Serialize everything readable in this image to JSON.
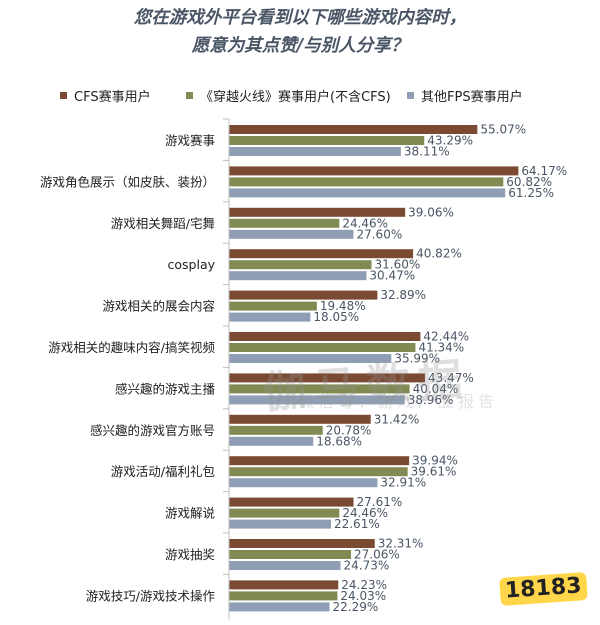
{
  "title_line1": "您在游戏外平台看到以下哪些游戏内容时，",
  "title_line2": "愿意为其点赞/与别人分享？",
  "colors": {
    "CFS赛事用户": "#7a4a33",
    "《穿越火线》赛事用户(不含CFS)": "#808a52",
    "其他FPS赛事用户": "#8f9eb4",
    "label_text": "#222222",
    "value_text": "#4a5565",
    "axis": "#bfbfbf"
  },
  "watermark": {
    "main": "伽马数据",
    "sub": "微信号：游戏产业报告"
  },
  "logo_text": "18183",
  "chart_data": {
    "type": "bar",
    "orientation": "horizontal",
    "title": "您在游戏外平台看到以下哪些游戏内容时，愿意为其点赞/与别人分享？",
    "xlabel": "",
    "ylabel": "",
    "grid": false,
    "legend_position": "top",
    "categories": [
      "游戏赛事",
      "游戏角色展示（如皮肤、装扮）",
      "游戏相关舞蹈/宅舞",
      "cosplay",
      "游戏相关的展会内容",
      "游戏相关的趣味内容/搞笑视频",
      "感兴趣的游戏主播",
      "感兴趣的游戏官方账号",
      "游戏活动/福利礼包",
      "游戏解说",
      "游戏抽奖",
      "游戏技巧/游戏技术操作"
    ],
    "series": [
      {
        "name": "CFS赛事用户",
        "values": [
          55.07,
          64.17,
          39.06,
          40.82,
          32.89,
          42.44,
          43.47,
          31.42,
          39.94,
          27.61,
          32.31,
          24.23
        ]
      },
      {
        "name": "《穿越火线》赛事用户(不含CFS)",
        "values": [
          43.29,
          60.82,
          24.46,
          31.6,
          19.48,
          41.34,
          40.04,
          20.78,
          39.61,
          24.46,
          27.06,
          24.03
        ]
      },
      {
        "name": "其他FPS赛事用户",
        "values": [
          38.11,
          61.25,
          27.6,
          30.47,
          18.05,
          35.99,
          38.96,
          18.68,
          32.91,
          22.61,
          24.73,
          22.29
        ]
      }
    ],
    "value_labels": [
      [
        "55.07%",
        "64.17%",
        "39.06%",
        "40.82%",
        "32.89%",
        "42.44%",
        "43.47%",
        "31.42%",
        "39.94%",
        "27.61%",
        "32.31%",
        "24.23%"
      ],
      [
        "43.29%",
        "60.82%",
        "24.46%",
        "31.60%",
        "19.48%",
        "41.34%",
        "40.04%",
        "20.78%",
        "39.61%",
        "24.46%",
        "27.06%",
        "24.03%"
      ],
      [
        "38.11%",
        "61.25%",
        "27.60%",
        "30.47%",
        "18.05%",
        "35.99%",
        "38.96%",
        "18.68%",
        "32.91%",
        "22.61%",
        "24.73%",
        "22.29%"
      ]
    ],
    "xlim": [
      0,
      70
    ]
  }
}
